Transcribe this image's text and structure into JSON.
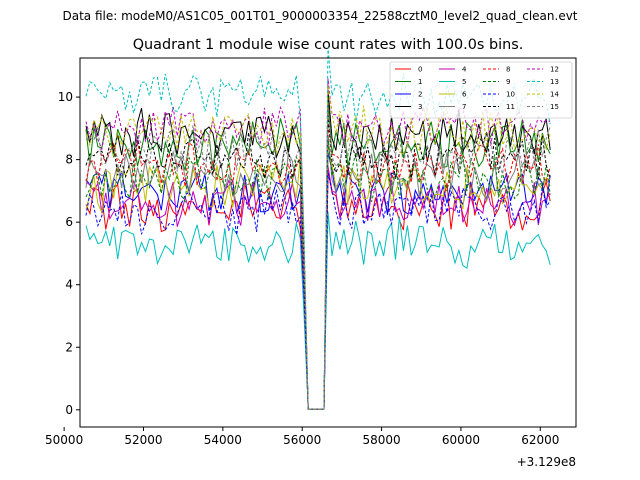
{
  "header": {
    "data_file": "Data file: modeM0/AS1C05_001T01_9000003354_22588cztM0_level2_quad_clean.evt"
  },
  "chart_data": {
    "type": "line",
    "title": "Quadrant 1 module wise count rates with 100.0s bins.",
    "xlabel": "",
    "ylabel": "",
    "x_offset_label": "+3.129e8",
    "xlim": [
      50400,
      62900
    ],
    "ylim": [
      -0.55,
      11.25
    ],
    "xticks": [
      50000,
      52000,
      54000,
      56000,
      58000,
      60000,
      62000
    ],
    "yticks": [
      0,
      2,
      4,
      6,
      8,
      10
    ],
    "x_start": 50550,
    "x_step": 100,
    "gap": {
      "low_start": 56150,
      "low_end": 56550,
      "low_value": 0.02,
      "dip_start": 56050,
      "recover": 56650,
      "resume": 56750,
      "end_start": 62150,
      "end_drop": 62300
    },
    "legend_position": "upper right",
    "series": [
      {
        "name": "0",
        "color": "#ff0000",
        "dash": false,
        "mean": 6.5
      },
      {
        "name": "1",
        "color": "#008000",
        "dash": false,
        "mean": 8.5
      },
      {
        "name": "2",
        "color": "#0000ff",
        "dash": false,
        "mean": 7.0
      },
      {
        "name": "3",
        "color": "#000000",
        "dash": false,
        "mean": 8.8
      },
      {
        "name": "4",
        "color": "#bf00bf",
        "dash": false,
        "mean": 6.6
      },
      {
        "name": "5",
        "color": "#00bfbf",
        "dash": false,
        "mean": 5.3
      },
      {
        "name": "6",
        "color": "#bfbf00",
        "dash": false,
        "mean": 7.2
      },
      {
        "name": "7",
        "color": "#808080",
        "dash": false,
        "mean": 7.5
      },
      {
        "name": "8",
        "color": "#ff0000",
        "dash": true,
        "mean": 7.8
      },
      {
        "name": "9",
        "color": "#008000",
        "dash": true,
        "mean": 7.4
      },
      {
        "name": "10",
        "color": "#0000ff",
        "dash": true,
        "mean": 6.4
      },
      {
        "name": "11",
        "color": "#000000",
        "dash": true,
        "mean": 8.1
      },
      {
        "name": "12",
        "color": "#bf00bf",
        "dash": true,
        "mean": 9.1
      },
      {
        "name": "13",
        "color": "#00bfbf",
        "dash": true,
        "mean": 10.0
      },
      {
        "name": "14",
        "color": "#bfbf00",
        "dash": true,
        "mean": 8.9
      },
      {
        "name": "15",
        "color": "#808080",
        "dash": true,
        "mean": 8.3
      }
    ]
  }
}
